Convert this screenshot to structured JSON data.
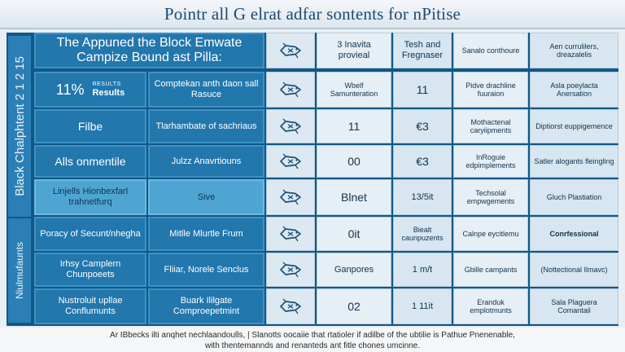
{
  "title": "Pointr all G elrat adfar sontents for nPitise",
  "sidebar": {
    "top_label": "Black Chalphtent 2 1 2 15",
    "bottom_label": "Niulmufaunts"
  },
  "rows": [
    {
      "left_a": "The Appuned the Block Emwate Campize Bound ast Pilla:",
      "icon": "fish-icon",
      "col1": "3 Inavita provieal",
      "col2": "Tesh and Fregnaser",
      "col3": "Sanalo conthoure",
      "col4": "Aen currulilers, dreazalelis"
    },
    {
      "left_a": "11%",
      "left_a_sub": "RESULTS",
      "left_a_sub2": "Results",
      "left_b": "Comptekan anth daon sall Rasuce",
      "icon": "fish-icon",
      "col1": "Wbelf Samunteration",
      "col2": "11",
      "col3": "Pidve drachline fuuraion",
      "col4": "Asla poeylacta Anersation"
    },
    {
      "left_a": "Filbe",
      "left_b": "Tlarhambate of sachriaus",
      "icon": "fish-icon",
      "col1": "11",
      "col2": "€3",
      "col3": "Mothactenal caryiipments",
      "col4": "Diptiorst euppigemence"
    },
    {
      "left_a": "Alls onmentile",
      "left_b": "Julzz Anavrtiouns",
      "icon": "fish-icon",
      "col1": "00",
      "col2": "€3",
      "col3": "InRoguie edpimplements",
      "col4": "Satler alogants fleingling"
    },
    {
      "left_a": "Linjells Hionbexfarl trahnetfurq",
      "left_b": "Sive",
      "icon": "fish-icon",
      "col1": "Blnet",
      "col2": "13/5it",
      "col3": "Techsolal empwgements",
      "col4": "Gluch Plastiation"
    },
    {
      "left_a": "Poracy of Secunt/nhegha",
      "left_b": "Mitlle Mlurtle Frum",
      "icon": "fish-icon",
      "col1": "0it",
      "col2": "Biealt caunpuzents",
      "col3": "Calnpe eycitlemu",
      "col4": "Conrfessional"
    },
    {
      "left_a": "Irhsy Camplern Chunpoeets",
      "left_b": "Fliiar, Norele Senclus",
      "icon": "fish-icon",
      "col1": "Ganpores",
      "col2": "1 m/t",
      "col3": "Gbille campants",
      "col4": "(Nottectional Ilmavc)"
    },
    {
      "left_a": "Nustroluit upllae Conflumunts",
      "left_b": "Buark Ililgate Comproepetmint",
      "icon": "fish-icon",
      "col1": "02",
      "col2": "1 11it",
      "col3": "Eranduk emplotmunts",
      "col4": "Sala Plaguera Comantail"
    }
  ],
  "footer": {
    "line1": "Ar IBbecks ilti anqhet nechlaandoulls, | Slanotts oocaiie that rtatioler if adilbe of the ubtilie is Pathue Pnenenable,",
    "line2": "with thentemannds and renanteds ant fitle chones umcinne."
  },
  "colors": {
    "board": "#0f5888",
    "left_cell": "#2277ad",
    "left_cell_light": "#4fa5d2",
    "data_cell": "#e6eff5"
  }
}
